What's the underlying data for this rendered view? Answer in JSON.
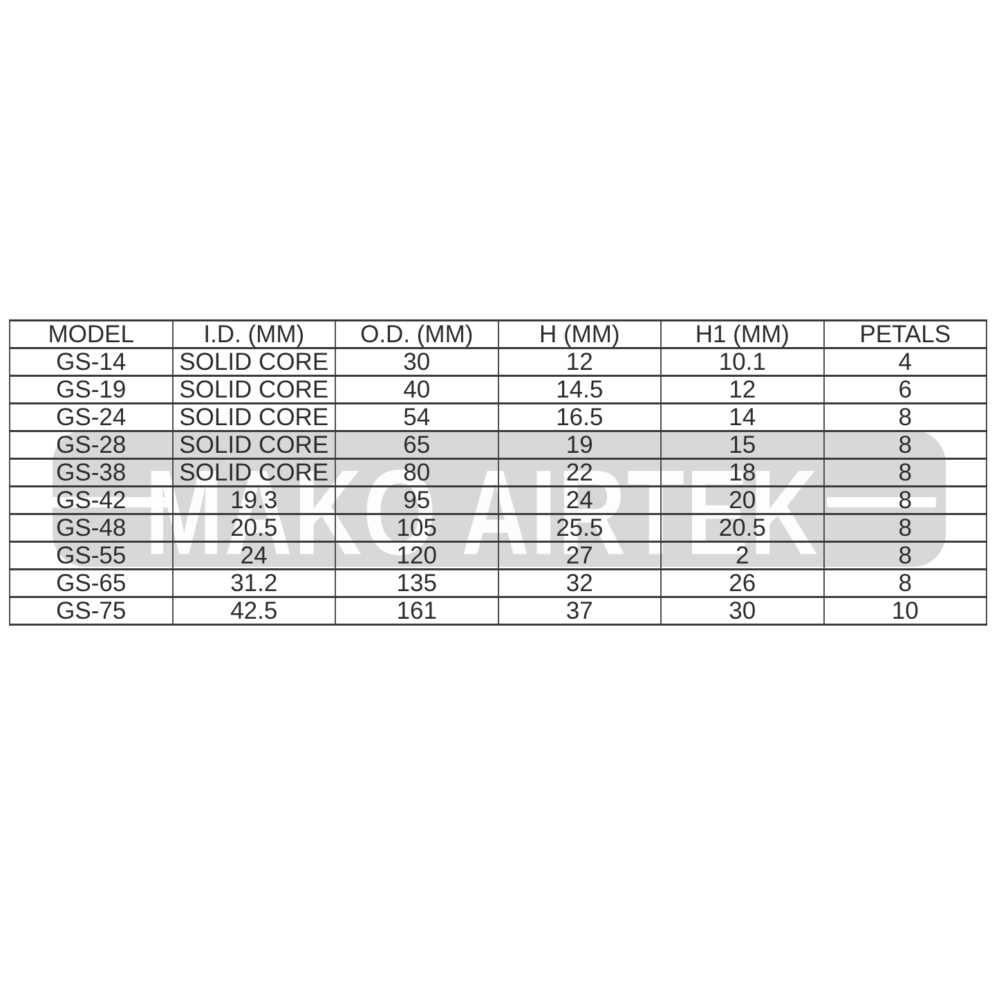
{
  "watermark": {
    "text": "MAKO AIRTEK",
    "bg_color": "#d8d8d8",
    "text_color": "#ffffff"
  },
  "colors": {
    "page_background": "#ffffff",
    "grid_line": "#3b3b3b",
    "cell_text": "#2c2c2c"
  },
  "table": {
    "headers": [
      "MODEL",
      "I.D. (MM)",
      "O.D. (MM)",
      "H (MM)",
      "H1 (MM)",
      "PETALS"
    ],
    "rows": [
      [
        "GS-14",
        "SOLID CORE",
        "30",
        "12",
        "10.1",
        "4"
      ],
      [
        "GS-19",
        "SOLID CORE",
        "40",
        "14.5",
        "12",
        "6"
      ],
      [
        "GS-24",
        "SOLID CORE",
        "54",
        "16.5",
        "14",
        "8"
      ],
      [
        "GS-28",
        "SOLID CORE",
        "65",
        "19",
        "15",
        "8"
      ],
      [
        "GS-38",
        "SOLID CORE",
        "80",
        "22",
        "18",
        "8"
      ],
      [
        "GS-42",
        "19.3",
        "95",
        "24",
        "20",
        "8"
      ],
      [
        "GS-48",
        "20.5",
        "105",
        "25.5",
        "20.5",
        "8"
      ],
      [
        "GS-55",
        "24",
        "120",
        "27",
        "2",
        "8"
      ],
      [
        "GS-65",
        "31.2",
        "135",
        "32",
        "26",
        "8"
      ],
      [
        "GS-75",
        "42.5",
        "161",
        "37",
        "30",
        "10"
      ]
    ]
  }
}
